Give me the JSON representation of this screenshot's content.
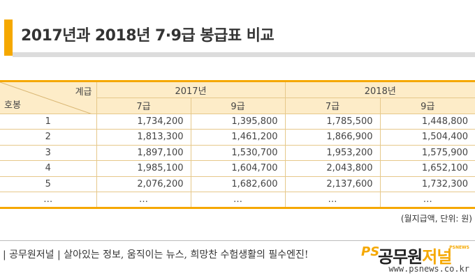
{
  "title": "2017년과 2018년 7·9급 봉급표 비교",
  "table": {
    "corner_top": "계급",
    "corner_bottom": "호봉",
    "years": [
      "2017년",
      "2018년"
    ],
    "grades": [
      "7급",
      "9급",
      "7급",
      "9급"
    ],
    "rows": [
      {
        "step": "1",
        "v": [
          "1,734,200",
          "1,395,800",
          "1,785,500",
          "1,448,800"
        ]
      },
      {
        "step": "2",
        "v": [
          "1,813,300",
          "1,461,200",
          "1,866,900",
          "1,504,400"
        ]
      },
      {
        "step": "3",
        "v": [
          "1,897,100",
          "1,530,700",
          "1,953,200",
          "1,575,900"
        ]
      },
      {
        "step": "4",
        "v": [
          "1,985,100",
          "1,604,700",
          "2,043,800",
          "1,652,100"
        ]
      },
      {
        "step": "5",
        "v": [
          "2,076,200",
          "1,682,600",
          "2,137,600",
          "1,732,300"
        ]
      },
      {
        "step": "…",
        "v": [
          "…",
          "…",
          "…",
          "…"
        ]
      }
    ]
  },
  "unit_note": "(월지급액, 단위: 원)",
  "footer": {
    "tagline": "| 공무원저널 |  살아있는 정보, 움직이는 뉴스, 희망찬 수험생활의 필수엔진!",
    "logo_mark": "PS",
    "logo_main": "공무원",
    "logo_accent": "저널",
    "logo_sub": "PSNEWS",
    "url": "www.psnews.co.kr"
  },
  "colors": {
    "accent": "#f5a800",
    "header_fill": "#fdecc8",
    "border": "#e6c88a"
  }
}
